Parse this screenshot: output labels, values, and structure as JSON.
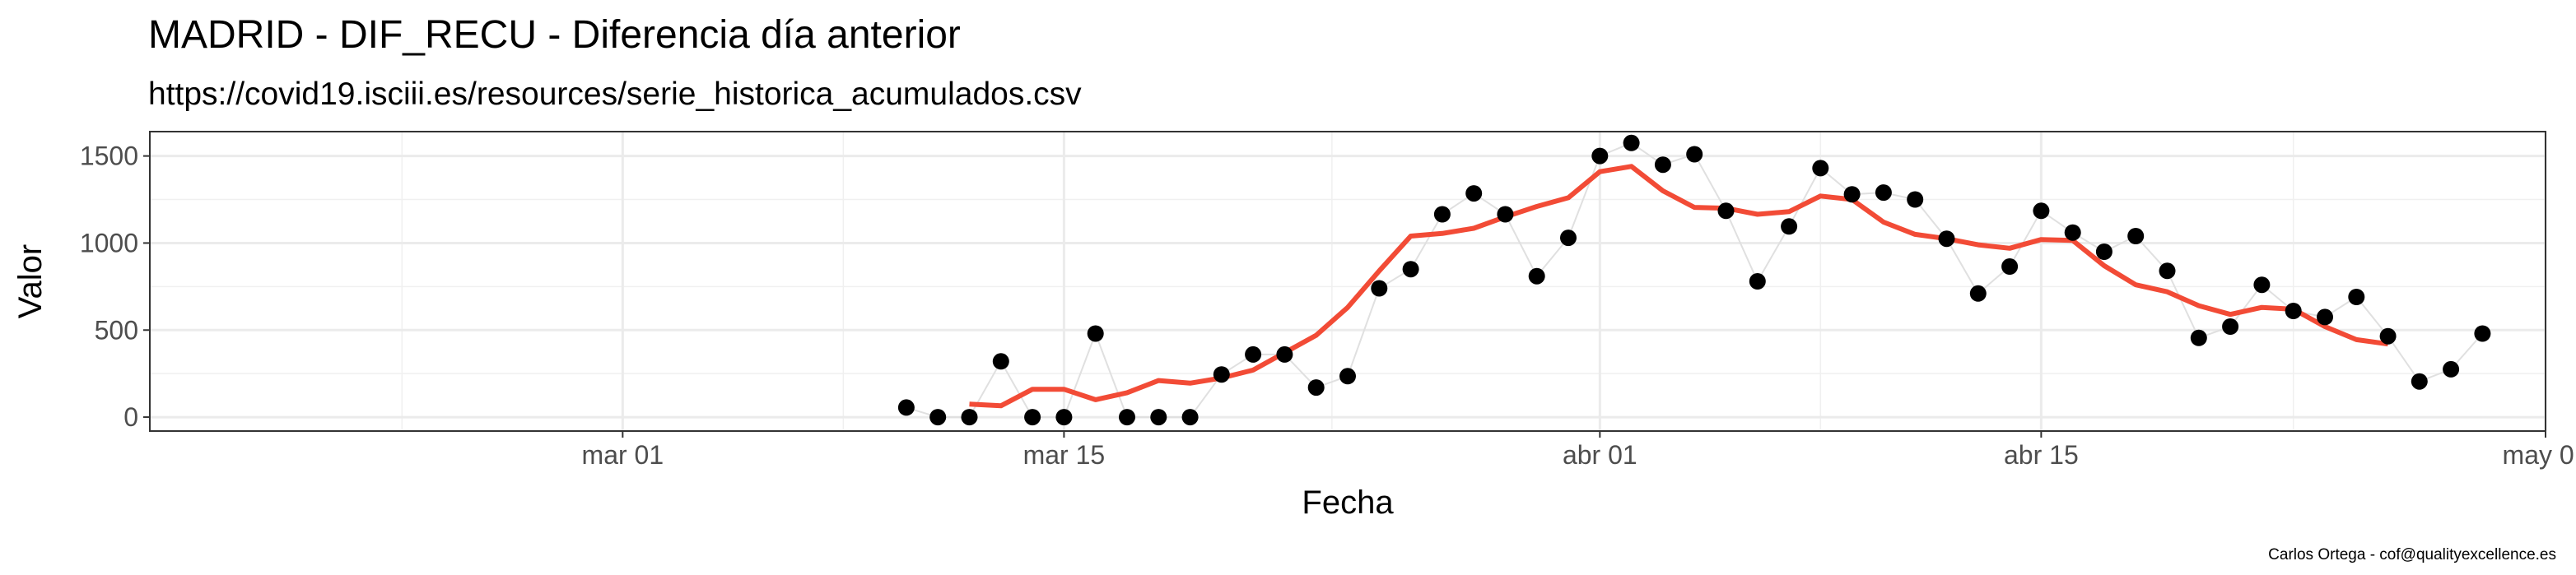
{
  "chart_data": {
    "type": "scatter",
    "title": "MADRID - DIF_RECU - Diferencia día anterior",
    "subtitle": "https://covid19.isciii.es/resources/serie_historica_acumulados.csv",
    "xlabel": "Fecha",
    "ylabel": "Valor",
    "caption": "Carlos Ortega - cof@qualityexcellence.es",
    "xlim": [
      "2020-02-15",
      "2020-05-01"
    ],
    "ylim": [
      -80,
      1640
    ],
    "x_ticks": [
      {
        "date": "2020-03-01",
        "label": "mar 01"
      },
      {
        "date": "2020-03-15",
        "label": "mar 15"
      },
      {
        "date": "2020-04-01",
        "label": "abr 01"
      },
      {
        "date": "2020-04-15",
        "label": "abr 15"
      },
      {
        "date": "2020-05-01",
        "label": "may 01"
      }
    ],
    "y_ticks": [
      0,
      500,
      1000,
      1500
    ],
    "grid": true,
    "colors": {
      "points": "#000000",
      "thin_line": "#e0e0e0",
      "smooth_line": "#f24b36"
    },
    "series": [
      {
        "kind": "points",
        "x": [
          "2020-03-10",
          "2020-03-11",
          "2020-03-12",
          "2020-03-13",
          "2020-03-14",
          "2020-03-15",
          "2020-03-16",
          "2020-03-17",
          "2020-03-18",
          "2020-03-19",
          "2020-03-20",
          "2020-03-21",
          "2020-03-22",
          "2020-03-23",
          "2020-03-24",
          "2020-03-25",
          "2020-03-26",
          "2020-03-27",
          "2020-03-28",
          "2020-03-29",
          "2020-03-30",
          "2020-03-31",
          "2020-04-01",
          "2020-04-02",
          "2020-04-03",
          "2020-04-04",
          "2020-04-05",
          "2020-04-06",
          "2020-04-07",
          "2020-04-08",
          "2020-04-09",
          "2020-04-10",
          "2020-04-11",
          "2020-04-12",
          "2020-04-13",
          "2020-04-14",
          "2020-04-15",
          "2020-04-16",
          "2020-04-17",
          "2020-04-18",
          "2020-04-19",
          "2020-04-20",
          "2020-04-21",
          "2020-04-22",
          "2020-04-23",
          "2020-04-24",
          "2020-04-25",
          "2020-04-26",
          "2020-04-27",
          "2020-04-28",
          "2020-04-29"
        ],
        "y": [
          55,
          0,
          0,
          320,
          0,
          0,
          480,
          0,
          0,
          0,
          245,
          360,
          360,
          170,
          235,
          740,
          850,
          1165,
          1285,
          1165,
          810,
          1030,
          1500,
          1575,
          1450,
          1510,
          1185,
          780,
          1095,
          1430,
          1280,
          1290,
          1250,
          1025,
          710,
          865,
          1185,
          1060,
          950,
          1040,
          840,
          455,
          520,
          760,
          610,
          575,
          690,
          465,
          205,
          275,
          480
        ]
      },
      {
        "kind": "smooth",
        "x": [
          "2020-03-12",
          "2020-03-13",
          "2020-03-14",
          "2020-03-15",
          "2020-03-16",
          "2020-03-17",
          "2020-03-18",
          "2020-03-19",
          "2020-03-20",
          "2020-03-21",
          "2020-03-22",
          "2020-03-23",
          "2020-03-24",
          "2020-03-25",
          "2020-03-26",
          "2020-03-27",
          "2020-03-28",
          "2020-03-29",
          "2020-03-30",
          "2020-03-31",
          "2020-04-01",
          "2020-04-02",
          "2020-04-03",
          "2020-04-04",
          "2020-04-05",
          "2020-04-06",
          "2020-04-07",
          "2020-04-08",
          "2020-04-09",
          "2020-04-10",
          "2020-04-11",
          "2020-04-12",
          "2020-04-13",
          "2020-04-14",
          "2020-04-15",
          "2020-04-16",
          "2020-04-17",
          "2020-04-18",
          "2020-04-19",
          "2020-04-20",
          "2020-04-21",
          "2020-04-22",
          "2020-04-23",
          "2020-04-24",
          "2020-04-25",
          "2020-04-26"
        ],
        "y": [
          75,
          65,
          160,
          160,
          100,
          140,
          210,
          195,
          225,
          270,
          370,
          470,
          630,
          840,
          1040,
          1055,
          1085,
          1150,
          1210,
          1260,
          1410,
          1440,
          1300,
          1205,
          1200,
          1165,
          1180,
          1270,
          1250,
          1120,
          1050,
          1025,
          990,
          970,
          1020,
          1015,
          870,
          760,
          720,
          640,
          590,
          630,
          620,
          520,
          445,
          420
        ]
      }
    ]
  }
}
